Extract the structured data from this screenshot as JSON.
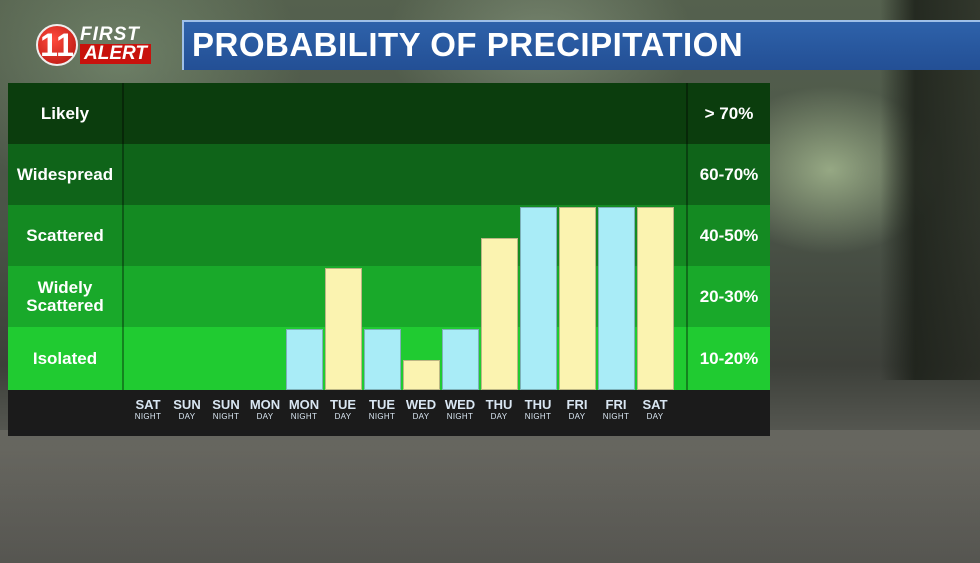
{
  "header": {
    "logo_number": "11",
    "logo_first": "FIRST",
    "logo_alert": "ALERT",
    "title": "PROBABILITY OF PRECIPITATION"
  },
  "colors": {
    "night_bar": "#a9ecf7",
    "day_bar": "#fbf3b0",
    "band_likely": "#0b3d0d",
    "band_widespread": "#0f6419",
    "band_scattered": "#148a22",
    "band_widely_scattered": "#19a92a",
    "band_isolated": "#20cb31",
    "title_blue": "#234f95"
  },
  "bands": [
    {
      "label": "Likely",
      "pct": "> 70%"
    },
    {
      "label": "Widespread",
      "pct": "60-70%"
    },
    {
      "label": "Scattered",
      "pct": "40-50%"
    },
    {
      "label": "Widely Scattered",
      "pct": "20-30%"
    },
    {
      "label": "Isolated",
      "pct": "10-20%"
    }
  ],
  "chart_data": {
    "type": "bar",
    "title": "PROBABILITY OF PRECIPITATION",
    "categories": [
      {
        "day": "SAT",
        "period": "NIGHT"
      },
      {
        "day": "SUN",
        "period": "DAY"
      },
      {
        "day": "SUN",
        "period": "NIGHT"
      },
      {
        "day": "MON",
        "period": "DAY"
      },
      {
        "day": "MON",
        "period": "NIGHT"
      },
      {
        "day": "TUE",
        "period": "DAY"
      },
      {
        "day": "TUE",
        "period": "NIGHT"
      },
      {
        "day": "WED",
        "period": "DAY"
      },
      {
        "day": "WED",
        "period": "NIGHT"
      },
      {
        "day": "THU",
        "period": "DAY"
      },
      {
        "day": "THU",
        "period": "NIGHT"
      },
      {
        "day": "FRI",
        "period": "DAY"
      },
      {
        "day": "FRI",
        "period": "NIGHT"
      },
      {
        "day": "SAT",
        "period": "DAY"
      }
    ],
    "values": [
      0,
      0,
      0,
      0,
      10,
      20,
      10,
      5,
      10,
      30,
      40,
      40,
      40,
      40
    ],
    "ylim": [
      0,
      100
    ],
    "y_scale_levels": [
      {
        "value": 0,
        "label": ""
      },
      {
        "value": 10,
        "label": "Isolated"
      },
      {
        "value": 20,
        "label": "Widely Scattered"
      },
      {
        "value": 40,
        "label": "Scattered"
      },
      {
        "value": 60,
        "label": "Widespread"
      },
      {
        "value": 70,
        "label": "Likely"
      }
    ],
    "bar_color_rule": "NIGHT periods use night_bar color, DAY periods use day_bar color"
  }
}
